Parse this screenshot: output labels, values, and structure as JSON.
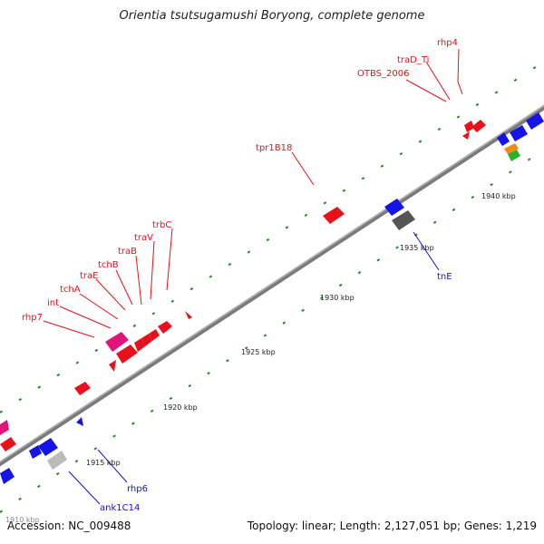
{
  "title": "Orientia tsutsugamushi Boryong, complete genome",
  "footer": {
    "accession": "Accession: NC_009488",
    "summary": "Topology: linear; Length: 2,127,051 bp; Genes: 1,219"
  },
  "ticks": [
    "1915 kbp",
    "1920 kbp",
    "1925 kbp",
    "1930 kbp",
    "1935 kbp",
    "1940 kbp"
  ],
  "partial_tick": "1910 kbp",
  "gene_labels": [
    {
      "name": "rhp4",
      "color": "#e8101a"
    },
    {
      "name": "traD_Ti",
      "color": "#e8101a"
    },
    {
      "name": "OTBS_2006",
      "color": "#e8101a"
    },
    {
      "name": "tpr1B18",
      "color": "#e8101a"
    },
    {
      "name": "trbC",
      "color": "#e8101a"
    },
    {
      "name": "traV",
      "color": "#e8101a"
    },
    {
      "name": "traB",
      "color": "#e8101a"
    },
    {
      "name": "tchB",
      "color": "#e8101a"
    },
    {
      "name": "traE",
      "color": "#e8101a"
    },
    {
      "name": "tchA",
      "color": "#e8101a"
    },
    {
      "name": "int",
      "color": "#e8101a"
    },
    {
      "name": "rhp7",
      "color": "#e8101a"
    },
    {
      "name": "tnE",
      "color": "#1414c8"
    },
    {
      "name": "rhp6",
      "color": "#1414c8"
    },
    {
      "name": "ank1C14",
      "color": "#1414c8"
    }
  ],
  "colors": {
    "backbone": "#8c8c8c",
    "forward_gene": "#e8101a",
    "reverse_gene": "#1414e6",
    "magenta_gene": "#e0147a",
    "dark_gray_gene": "#555555",
    "light_gray_gene": "#bbbbbb",
    "orange_gene": "#f08c14",
    "green_gene": "#28b428",
    "tick_marks": "#228b22"
  }
}
